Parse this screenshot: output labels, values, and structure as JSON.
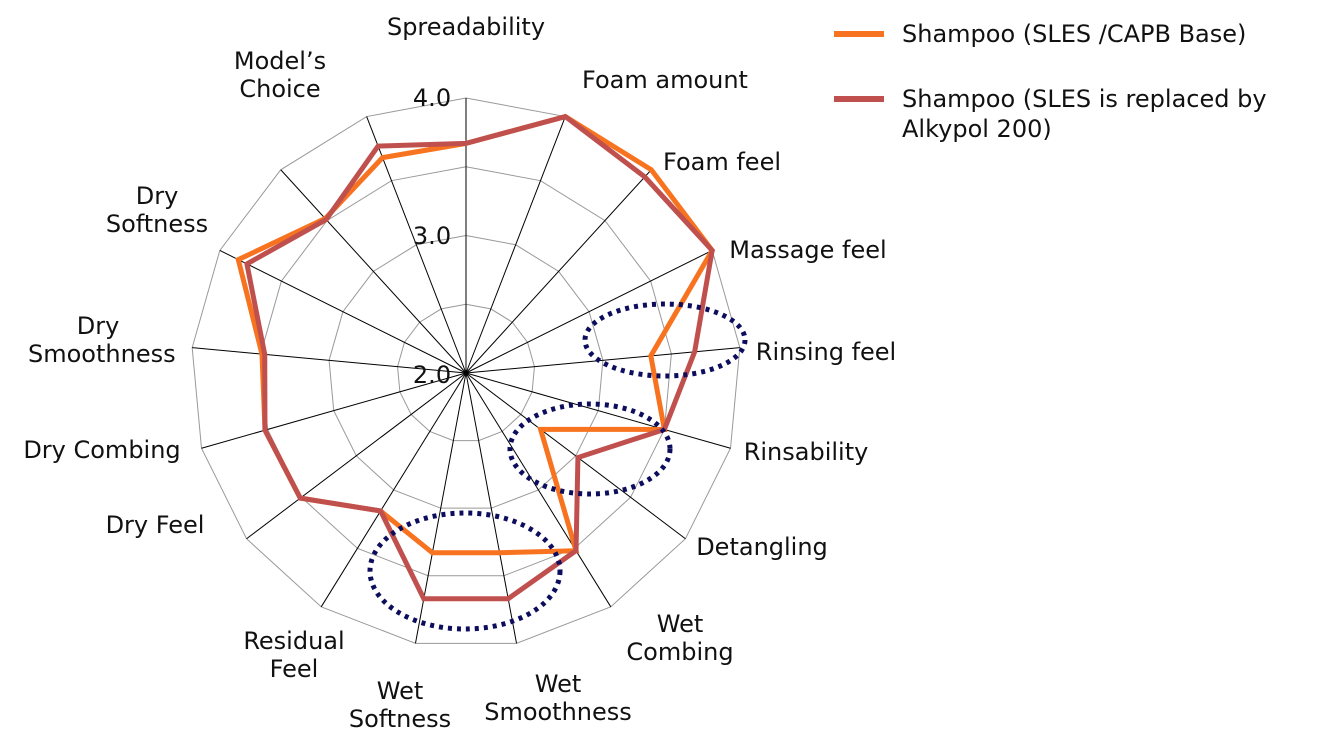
{
  "chart_data": {
    "type": "radar",
    "categories": [
      "Spreadability",
      "Foam amount",
      "Foam feel",
      "Massage feel",
      "Rinsing feel",
      "Rinsability",
      "Detangling",
      "Wet Combing",
      "Wet Smoothness",
      "Wet Softness",
      "Residual Feel",
      "Dry Feel",
      "Dry Combing",
      "Dry Smoothness",
      "Dry Softness",
      null,
      "Model’s Choice"
    ],
    "series": [
      {
        "name": "Shampoo (SLES /CAPB Base)",
        "color": "#f7731f",
        "values": [
          3.67,
          4.0,
          4.0,
          4.0,
          3.35,
          3.5,
          2.68,
          3.52,
          3.33,
          3.33,
          3.18,
          3.51,
          3.52,
          3.49,
          3.85,
          3.52,
          3.68
        ]
      },
      {
        "name": "Shampoo (SLES is replaced by Alkypol 200)",
        "color": "#c0504d",
        "values": [
          3.67,
          4.0,
          3.93,
          4.0,
          3.67,
          3.5,
          3.02,
          3.52,
          3.67,
          3.67,
          3.18,
          3.51,
          3.52,
          3.47,
          3.78,
          3.51,
          3.77
        ]
      }
    ],
    "ylim": [
      2,
      4
    ],
    "yticks": [
      {
        "value": 2,
        "label": "2.0"
      },
      {
        "value": 3,
        "label": "3.0"
      },
      {
        "value": 4,
        "label": "4.0"
      }
    ],
    "yticks_minor": [
      2.5,
      3.5
    ],
    "grid": true
  }
}
